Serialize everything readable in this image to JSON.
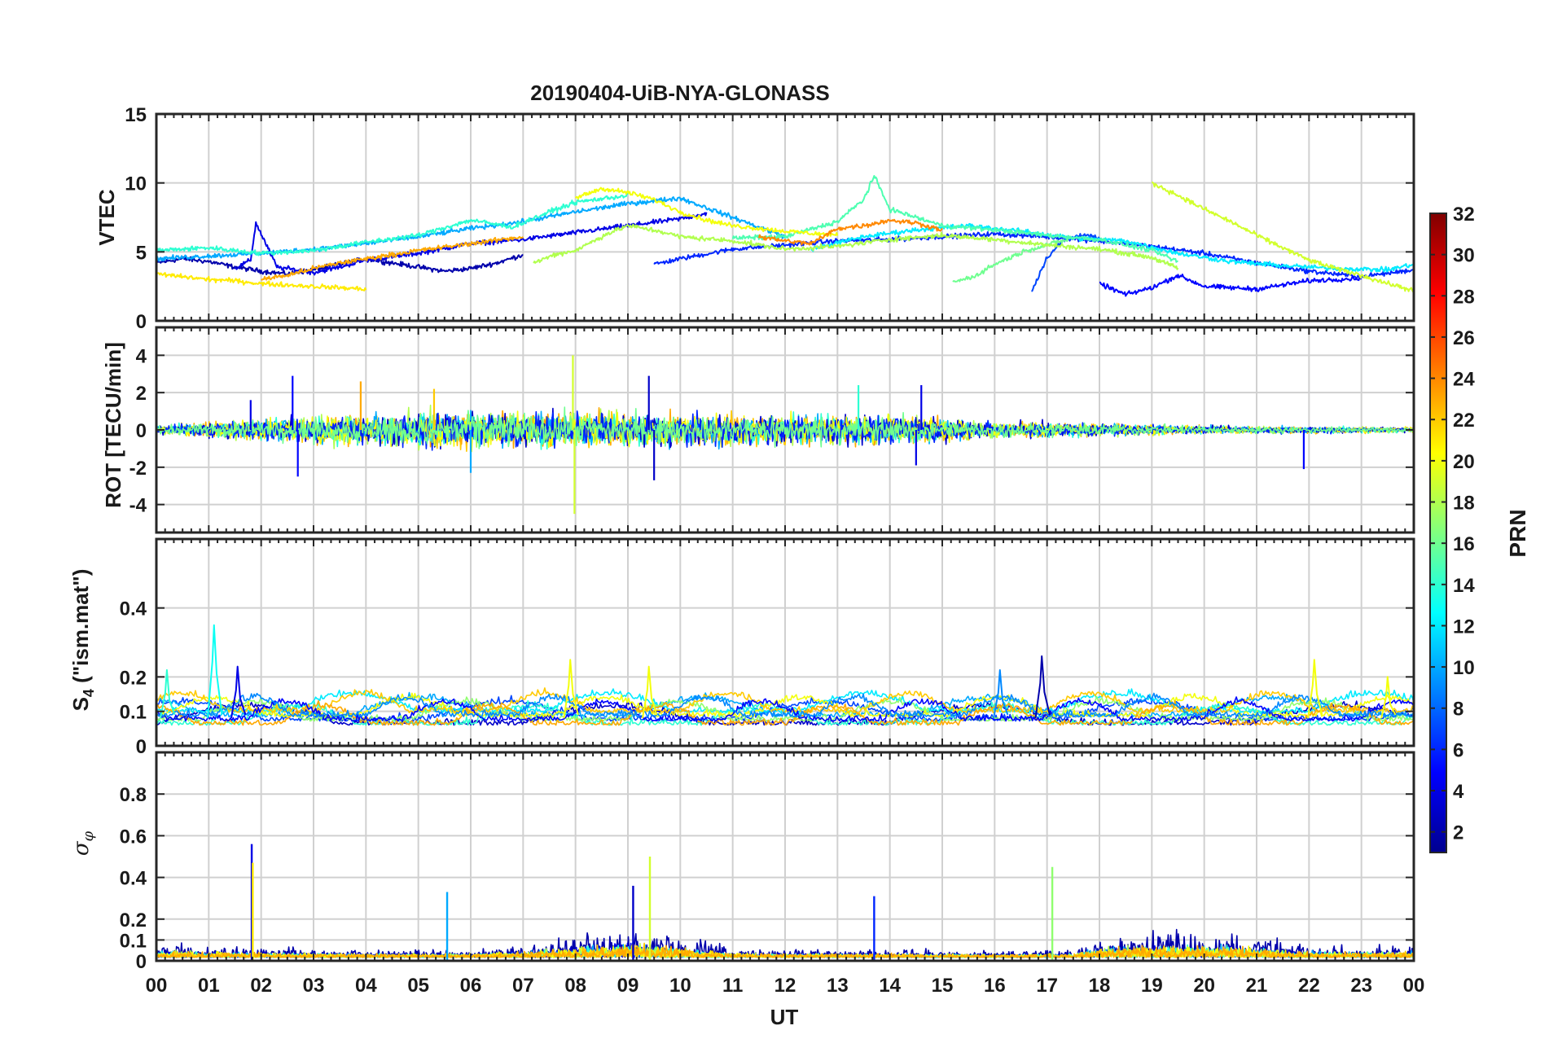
{
  "title": "20190404-UiB-NYA-GLONASS",
  "x_axis": {
    "label": "UT",
    "tick_labels": [
      "00",
      "01",
      "02",
      "03",
      "04",
      "05",
      "06",
      "07",
      "08",
      "09",
      "10",
      "11",
      "12",
      "13",
      "14",
      "15",
      "16",
      "17",
      "18",
      "19",
      "20",
      "21",
      "22",
      "23",
      "00"
    ]
  },
  "colorbar": {
    "label": "PRN",
    "range": [
      1,
      32
    ],
    "tick_labels": [
      "2",
      "4",
      "6",
      "8",
      "10",
      "12",
      "14",
      "16",
      "18",
      "20",
      "22",
      "24",
      "26",
      "28",
      "30",
      "32"
    ],
    "colors": [
      "#00008f",
      "#0000ff",
      "#0080ff",
      "#00ffff",
      "#80ff80",
      "#ffff00",
      "#ff8000",
      "#ff0000",
      "#800000"
    ]
  },
  "panels": [
    {
      "id": "vtec",
      "ylabel": "VTEC",
      "ylim": [
        0,
        15
      ],
      "ytick_labels": [
        "0",
        "5",
        "10",
        "15"
      ]
    },
    {
      "id": "rot",
      "ylabel": "ROT [TECU/min]",
      "ylim": [
        -5.5,
        5.5
      ],
      "ytick_labels": [
        "-4",
        "-2",
        "0",
        "2",
        "4"
      ]
    },
    {
      "id": "s4",
      "ylabel_main": "S",
      "ylabel_sub": "4",
      "ylabel_rest": " (\"ism.mat\")",
      "ylim": [
        0,
        0.6
      ],
      "ytick_labels": [
        "0",
        "0.1",
        "0.2",
        "0.4"
      ]
    },
    {
      "id": "sigma",
      "ylabel_main": "σ",
      "ylabel_sub": "φ",
      "ylim": [
        0,
        1.0
      ],
      "ytick_labels": [
        "0",
        "0.1",
        "0.2",
        "0.4",
        "0.6",
        "0.8"
      ]
    }
  ],
  "chart_data": [
    {
      "type": "line",
      "panel": "vtec",
      "ylabel": "VTEC",
      "ylim": [
        0,
        15
      ],
      "xlim": [
        0,
        24
      ],
      "grid": true,
      "color_by": "PRN",
      "series": [
        {
          "prn": 2,
          "x": [
            0,
            0.5,
            1,
            1.5,
            2,
            2.5,
            3,
            3.5,
            4,
            4.5,
            5,
            5.5,
            6,
            6.5,
            7
          ],
          "y": [
            4.2,
            4.5,
            4.3,
            3.9,
            3.6,
            3.4,
            3.7,
            4.1,
            4.5,
            4.2,
            3.9,
            3.6,
            3.8,
            4.2,
            4.8
          ]
        },
        {
          "prn": 4,
          "x": [
            1.5,
            1.8,
            1.9,
            2.3,
            3,
            3.5,
            4,
            5,
            6,
            7,
            8,
            9,
            10,
            10.5
          ],
          "y": [
            3.8,
            4.4,
            7.1,
            3.9,
            3.5,
            3.9,
            4.4,
            4.9,
            5.6,
            5.9,
            6.4,
            6.9,
            7.4,
            7.8
          ]
        },
        {
          "prn": 6,
          "x": [
            9.5,
            10,
            11,
            12,
            13,
            14,
            15,
            16,
            17,
            18,
            19,
            20,
            21,
            22,
            23,
            24
          ],
          "y": [
            4.1,
            4.5,
            5.2,
            5.5,
            5.8,
            5.9,
            6.1,
            6.3,
            6.1,
            5.8,
            5.4,
            4.9,
            4.2,
            3.6,
            3.2,
            3.7
          ]
        },
        {
          "prn": 7,
          "x": [
            16.7,
            17,
            17.3,
            17.7,
            18
          ],
          "y": [
            2.1,
            4.6,
            5.8,
            6.3,
            5.9
          ]
        },
        {
          "prn": 5,
          "x": [
            18,
            18.5,
            19,
            19.5,
            20,
            21,
            22,
            23
          ],
          "y": [
            2.7,
            1.9,
            2.4,
            3.3,
            2.5,
            2.3,
            2.9,
            3.1
          ]
        },
        {
          "prn": 10,
          "x": [
            0,
            1,
            2,
            3,
            4,
            5,
            6,
            7,
            8,
            9,
            10,
            11,
            12
          ],
          "y": [
            4.5,
            4.7,
            4.9,
            5.2,
            5.6,
            6.1,
            6.7,
            7.2,
            7.9,
            8.5,
            8.9,
            7.5,
            6.1
          ]
        },
        {
          "prn": 12,
          "x": [
            12.5,
            13.5,
            14.5,
            15.5,
            16.5,
            17.5,
            18.5,
            19.5,
            20.5,
            21.5,
            22.5,
            23.5,
            24
          ],
          "y": [
            5.2,
            6.1,
            6.6,
            6.9,
            6.5,
            6.0,
            5.8,
            4.9,
            4.3,
            4.0,
            3.8,
            3.7,
            4.1
          ]
        },
        {
          "prn": 14,
          "x": [
            0,
            1,
            2,
            3,
            4,
            5,
            6,
            6.8,
            7.5,
            8,
            9
          ],
          "y": [
            5.1,
            5.3,
            4.9,
            5.1,
            5.7,
            6.2,
            7.3,
            6.8,
            7.9,
            8.6,
            9.1
          ]
        },
        {
          "prn": 15,
          "x": [
            11,
            12,
            13,
            13.5,
            13.7,
            14,
            15,
            16,
            17,
            18,
            19,
            19.5
          ],
          "y": [
            6.0,
            6.1,
            7.2,
            8.8,
            10.5,
            8.1,
            6.9,
            6.6,
            6.2,
            5.9,
            5.1,
            4.3
          ]
        },
        {
          "prn": 16,
          "x": [
            15.2,
            15.6,
            16,
            16.6,
            17,
            17.4
          ],
          "y": [
            2.8,
            3.2,
            4.1,
            5.1,
            5.5,
            5.9
          ]
        },
        {
          "prn": 18,
          "x": [
            7.2,
            7.6,
            8,
            8.6,
            9,
            9.6,
            10,
            11,
            12,
            13,
            14,
            15,
            16,
            17,
            18,
            19,
            19.5
          ],
          "y": [
            4.2,
            4.8,
            5.1,
            6.3,
            6.9,
            6.5,
            6.1,
            5.8,
            5.2,
            5.4,
            5.9,
            6.2,
            5.9,
            5.5,
            5.2,
            4.6,
            3.8
          ]
        },
        {
          "prn": 20,
          "x": [
            8,
            8.5,
            9,
            9.5,
            10,
            10.5,
            11,
            12,
            13
          ],
          "y": [
            8.9,
            9.6,
            9.3,
            8.8,
            7.9,
            7.3,
            6.9,
            6.5,
            6.2
          ]
        },
        {
          "prn": 19,
          "x": [
            19,
            19.5,
            20,
            20.5,
            21,
            21.5,
            22,
            22.5,
            23,
            23.5,
            24
          ],
          "y": [
            10,
            9.1,
            8.1,
            7.2,
            6.2,
            5.3,
            4.4,
            3.8,
            3.3,
            2.7,
            2.2
          ]
        },
        {
          "prn": 21,
          "x": [
            0,
            0.5,
            1,
            1.5,
            2,
            2.5,
            3,
            3.5,
            4
          ],
          "y": [
            3.4,
            3.2,
            3.0,
            2.9,
            2.7,
            2.6,
            2.5,
            2.4,
            2.3
          ]
        },
        {
          "prn": 23,
          "x": [
            2,
            2.5,
            3,
            3.5,
            4,
            4.5,
            5,
            6,
            7
          ],
          "y": [
            3.0,
            3.3,
            3.8,
            4.2,
            4.5,
            4.8,
            5.1,
            5.6,
            6.1
          ]
        },
        {
          "prn": 24,
          "x": [
            11.5,
            12,
            12.5,
            13,
            13.5,
            14,
            14.5,
            15
          ],
          "y": [
            6.1,
            5.8,
            5.6,
            6.7,
            6.9,
            7.3,
            7.1,
            6.6
          ]
        }
      ]
    },
    {
      "type": "line",
      "panel": "rot",
      "ylabel": "ROT [TECU/min]",
      "ylim": [
        -5.5,
        5.5
      ],
      "xlim": [
        0,
        24
      ],
      "grid": true,
      "color_by": "PRN",
      "spikes": [
        {
          "prn": 4,
          "x": 1.8,
          "y": 1.6
        },
        {
          "prn": 5,
          "x": 2.6,
          "y": 2.9
        },
        {
          "prn": 5,
          "x": 2.7,
          "y": -2.5
        },
        {
          "prn": 23,
          "x": 3.9,
          "y": 2.6
        },
        {
          "prn": 22,
          "x": 5.3,
          "y": 2.2
        },
        {
          "prn": 10,
          "x": 6.0,
          "y": -2.3
        },
        {
          "prn": 19,
          "x": 7.95,
          "y": 4.0
        },
        {
          "prn": 19,
          "x": 7.98,
          "y": -4.5
        },
        {
          "prn": 3,
          "x": 9.4,
          "y": 2.9
        },
        {
          "prn": 3,
          "x": 9.5,
          "y": -2.7
        },
        {
          "prn": 14,
          "x": 13.4,
          "y": 2.4
        },
        {
          "prn": 4,
          "x": 14.6,
          "y": 2.4
        },
        {
          "prn": 4,
          "x": 14.5,
          "y": -1.9
        },
        {
          "prn": 5,
          "x": 21.9,
          "y": -2.1
        }
      ],
      "activity_envelope": {
        "x": [
          0,
          2,
          4,
          6,
          8,
          10,
          12,
          14,
          16,
          18,
          20,
          22,
          24
        ],
        "amplitude": [
          0.3,
          0.8,
          1.2,
          1.4,
          1.3,
          1.2,
          1.1,
          1.1,
          0.6,
          0.5,
          0.3,
          0.25,
          0.2
        ]
      }
    },
    {
      "type": "line",
      "panel": "s4",
      "ylabel": "S4 (\"ism.mat\")",
      "ylim": [
        0,
        0.6
      ],
      "xlim": [
        0,
        24
      ],
      "grid": true,
      "color_by": "PRN",
      "spikes": [
        {
          "prn": 13,
          "x": 1.1,
          "y": 0.35
        },
        {
          "prn": 4,
          "x": 1.55,
          "y": 0.23
        },
        {
          "prn": 14,
          "x": 0.2,
          "y": 0.22
        },
        {
          "prn": 20,
          "x": 7.9,
          "y": 0.25
        },
        {
          "prn": 20,
          "x": 9.4,
          "y": 0.23
        },
        {
          "prn": 9,
          "x": 16.1,
          "y": 0.22
        },
        {
          "prn": 2,
          "x": 16.9,
          "y": 0.26
        },
        {
          "prn": 20,
          "x": 22.1,
          "y": 0.25
        },
        {
          "prn": 20,
          "x": 23.5,
          "y": 0.2
        }
      ],
      "baseline": 0.06
    },
    {
      "type": "line",
      "panel": "sigma",
      "ylabel": "σφ",
      "ylim": [
        0,
        1.0
      ],
      "xlim": [
        0,
        24
      ],
      "grid": true,
      "color_by": "PRN",
      "spikes": [
        {
          "prn": 4,
          "x": 1.82,
          "y": 0.56
        },
        {
          "prn": 21,
          "x": 1.84,
          "y": 0.47
        },
        {
          "prn": 10,
          "x": 5.55,
          "y": 0.33
        },
        {
          "prn": 3,
          "x": 9.1,
          "y": 0.36
        },
        {
          "prn": 19,
          "x": 9.42,
          "y": 0.5
        },
        {
          "prn": 6,
          "x": 13.7,
          "y": 0.31
        },
        {
          "prn": 17,
          "x": 17.1,
          "y": 0.45
        }
      ],
      "baseline": 0.04,
      "activity_envelope": {
        "x": [
          0,
          2,
          4,
          6,
          7,
          8,
          9,
          10,
          11,
          12,
          14,
          16,
          17.5,
          18,
          19,
          20,
          21,
          22,
          23,
          24
        ],
        "amplitude": [
          0.09,
          0.06,
          0.05,
          0.05,
          0.08,
          0.14,
          0.2,
          0.12,
          0.06,
          0.05,
          0.05,
          0.04,
          0.05,
          0.13,
          0.15,
          0.16,
          0.13,
          0.08,
          0.07,
          0.08
        ]
      }
    }
  ]
}
